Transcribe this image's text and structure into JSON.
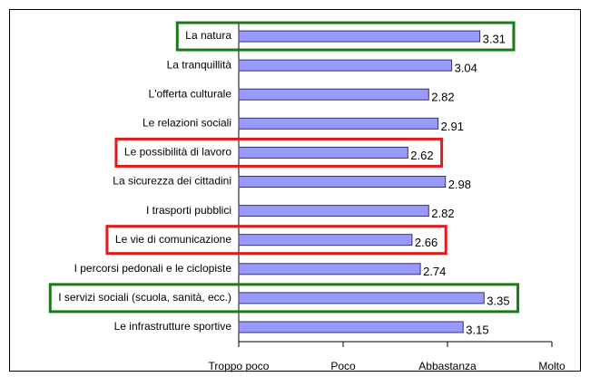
{
  "chart_data": {
    "type": "bar",
    "orientation": "horizontal",
    "categories": [
      "La natura",
      "La tranquillità",
      "L'offerta culturale",
      "Le relazioni sociali",
      "Le possibilità di lavoro",
      "La sicurezza dei cittadini",
      "I trasporti pubblici",
      "Le vie di comunicazione",
      "I percorsi pedonali e le ciclopiste",
      "I servizi sociali (scuola, sanità, ecc.)",
      "Le infrastrutture sportive"
    ],
    "values": [
      3.31,
      3.04,
      2.82,
      2.91,
      2.62,
      2.98,
      2.82,
      2.66,
      2.74,
      3.35,
      3.15
    ],
    "color": "#9999ff",
    "highlight_colors": [
      "#1a7a1a",
      null,
      null,
      null,
      "#e01b1b",
      null,
      null,
      "#e01b1b",
      null,
      "#1a7a1a",
      null
    ],
    "xlim": [
      1,
      4
    ],
    "xticks": [
      {
        "value": 1,
        "label": "Troppo poco"
      },
      {
        "value": 2,
        "label": "Poco"
      },
      {
        "value": 3,
        "label": "Abbastanza"
      },
      {
        "value": 4,
        "label": "Molto"
      }
    ]
  }
}
